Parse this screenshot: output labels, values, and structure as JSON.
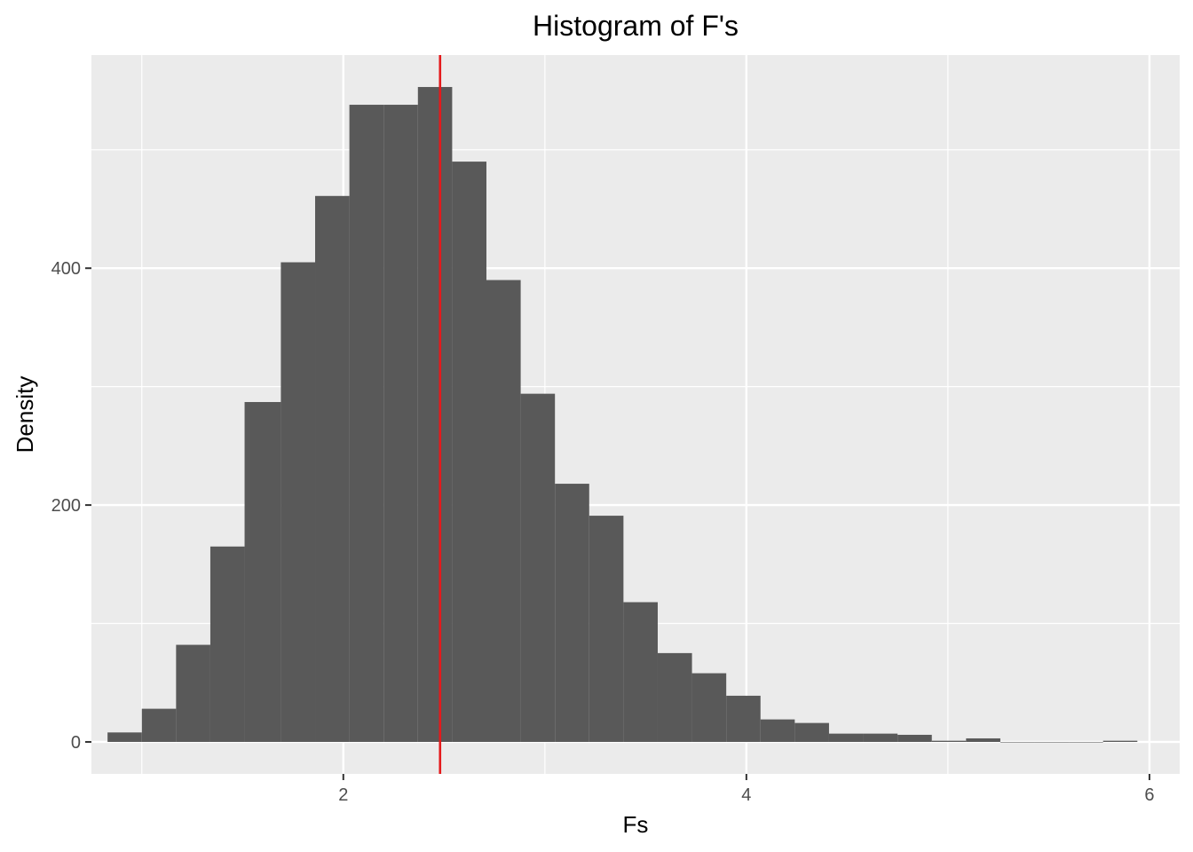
{
  "chart_data": {
    "type": "bar",
    "title": "Histogram of F's",
    "xlabel": "Fs",
    "ylabel": "Density",
    "xlim": [
      0.75,
      6.15
    ],
    "ylim": [
      -27,
      580
    ],
    "x_ticks": [
      2,
      4,
      6
    ],
    "x_tick_labels": [
      "2",
      "4",
      "6"
    ],
    "y_ticks": [
      0,
      200,
      400
    ],
    "y_tick_labels": [
      "0",
      "200",
      "400"
    ],
    "x_minor_ticks": [
      1,
      3,
      5
    ],
    "y_minor_ticks": [
      100,
      300,
      500
    ],
    "grid": true,
    "bin_width": 0.17,
    "bins": [
      {
        "x0": 0.83,
        "x1": 1.0,
        "value": 8
      },
      {
        "x0": 1.0,
        "x1": 1.17,
        "value": 28
      },
      {
        "x0": 1.17,
        "x1": 1.34,
        "value": 82
      },
      {
        "x0": 1.34,
        "x1": 1.51,
        "value": 165
      },
      {
        "x0": 1.51,
        "x1": 1.69,
        "value": 287
      },
      {
        "x0": 1.69,
        "x1": 1.86,
        "value": 405
      },
      {
        "x0": 1.86,
        "x1": 2.03,
        "value": 461
      },
      {
        "x0": 2.03,
        "x1": 2.2,
        "value": 538
      },
      {
        "x0": 2.2,
        "x1": 2.37,
        "value": 538
      },
      {
        "x0": 2.37,
        "x1": 2.54,
        "value": 553
      },
      {
        "x0": 2.54,
        "x1": 2.71,
        "value": 490
      },
      {
        "x0": 2.71,
        "x1": 2.88,
        "value": 390
      },
      {
        "x0": 2.88,
        "x1": 3.05,
        "value": 294
      },
      {
        "x0": 3.05,
        "x1": 3.22,
        "value": 218
      },
      {
        "x0": 3.22,
        "x1": 3.39,
        "value": 191
      },
      {
        "x0": 3.39,
        "x1": 3.56,
        "value": 118
      },
      {
        "x0": 3.56,
        "x1": 3.73,
        "value": 75
      },
      {
        "x0": 3.73,
        "x1": 3.9,
        "value": 58
      },
      {
        "x0": 3.9,
        "x1": 4.07,
        "value": 39
      },
      {
        "x0": 4.07,
        "x1": 4.24,
        "value": 19
      },
      {
        "x0": 4.24,
        "x1": 4.41,
        "value": 16
      },
      {
        "x0": 4.41,
        "x1": 4.58,
        "value": 7
      },
      {
        "x0": 4.58,
        "x1": 4.75,
        "value": 7
      },
      {
        "x0": 4.75,
        "x1": 4.92,
        "value": 6
      },
      {
        "x0": 4.92,
        "x1": 5.09,
        "value": 1
      },
      {
        "x0": 5.09,
        "x1": 5.26,
        "value": 3
      },
      {
        "x0": 5.26,
        "x1": 5.43,
        "value": 0
      },
      {
        "x0": 5.43,
        "x1": 5.6,
        "value": 0
      },
      {
        "x0": 5.6,
        "x1": 5.77,
        "value": 0
      },
      {
        "x0": 5.77,
        "x1": 5.94,
        "value": 1
      }
    ],
    "reference_line": {
      "x": 2.48,
      "color": "#e41a1c"
    },
    "colors": {
      "panel_background": "#ebebeb",
      "grid": "#ffffff",
      "bar_fill": "#595959",
      "tick_text": "#4d4d4d",
      "tick_mark": "#333333"
    }
  }
}
